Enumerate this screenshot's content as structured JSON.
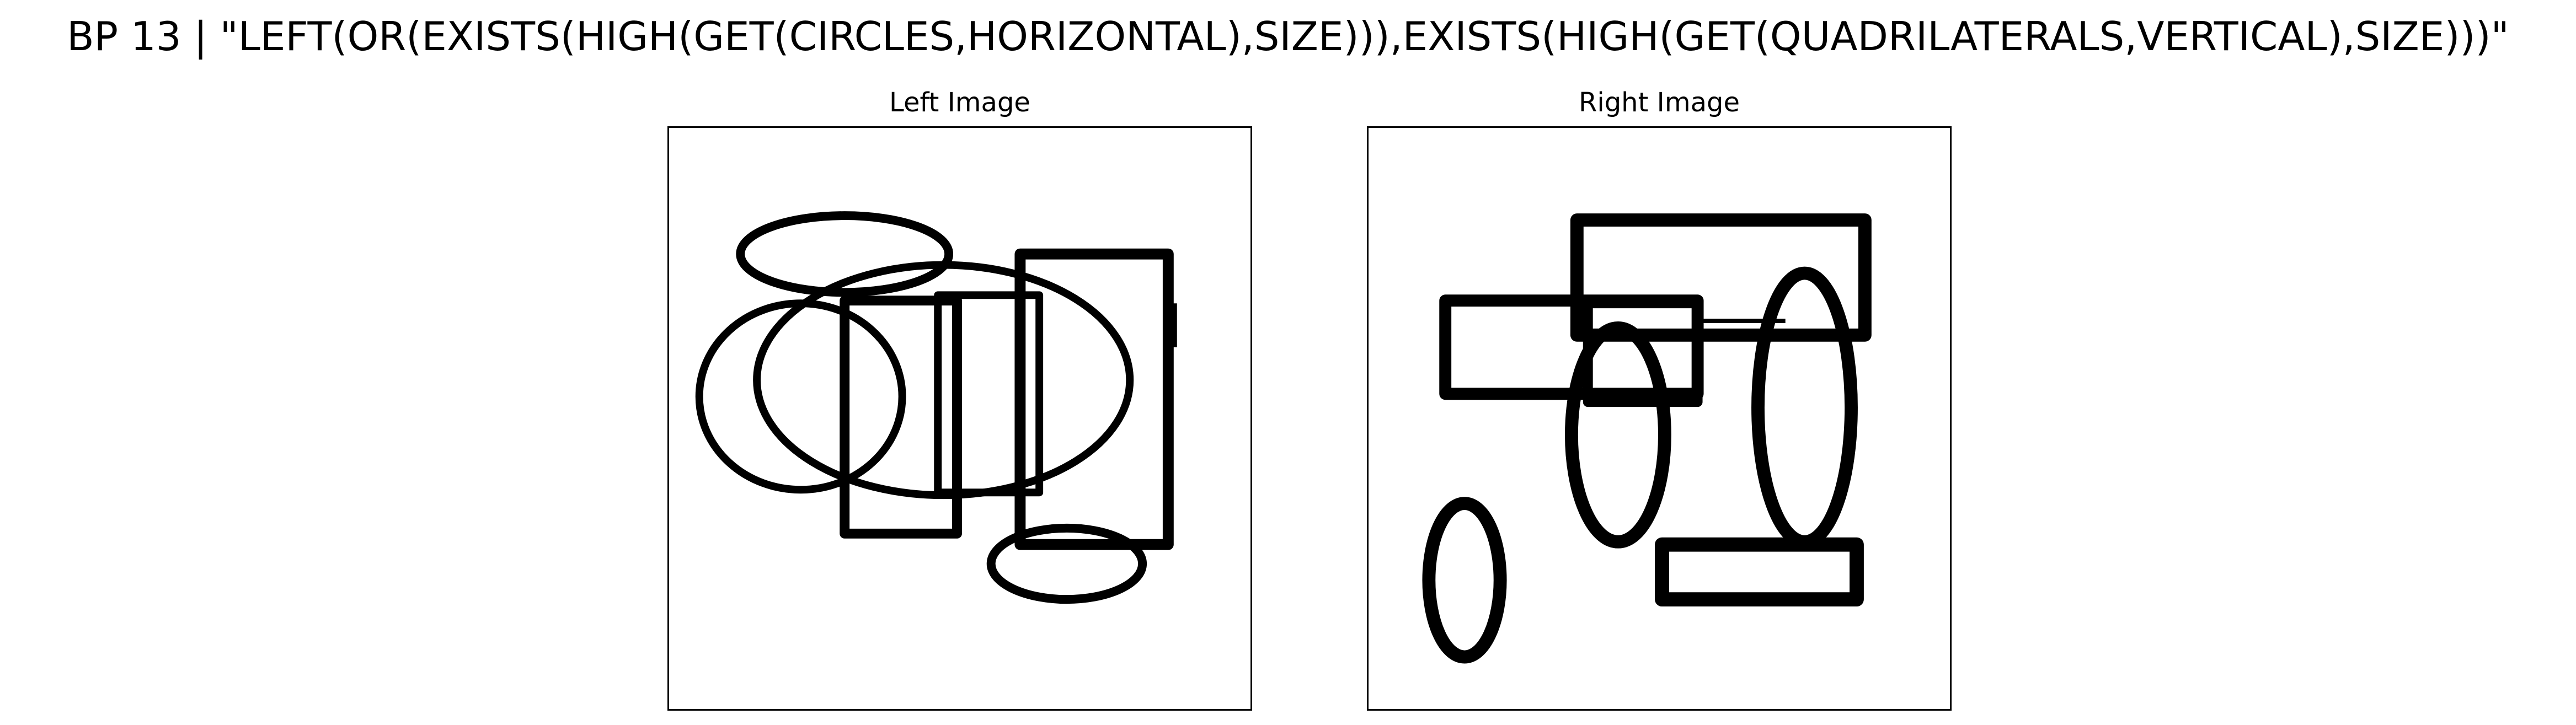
{
  "figure": {
    "title": "BP 13 | \"LEFT(OR(EXISTS(HIGH(GET(CIRCLES,HORIZONTAL),SIZE))),EXISTS(HIGH(GET(QUADRILATERALS,VERTICAL),SIZE)))\"",
    "panels": [
      {
        "title": "Left Image"
      },
      {
        "title": "Right Image"
      }
    ]
  }
}
